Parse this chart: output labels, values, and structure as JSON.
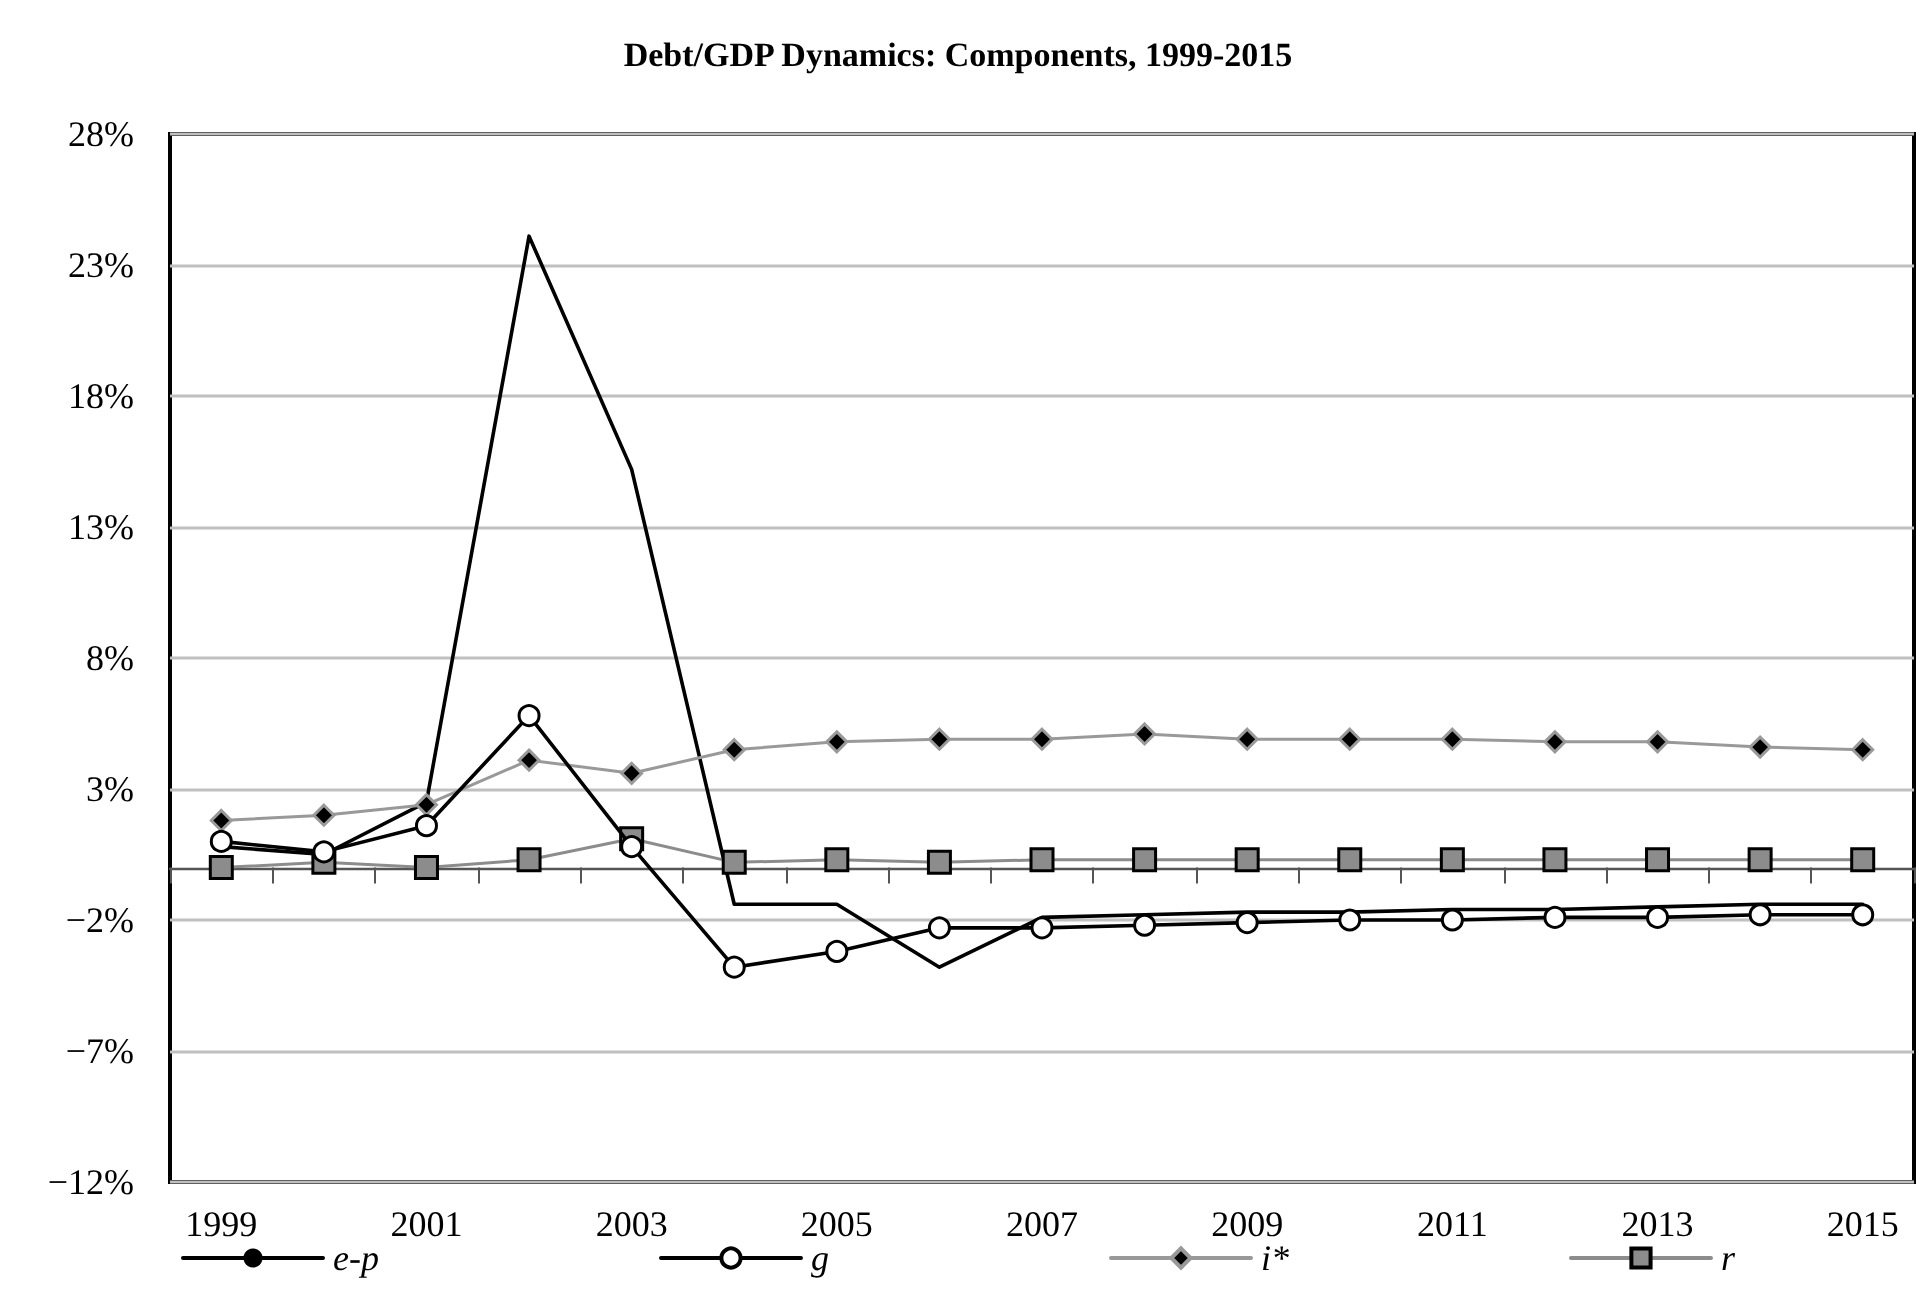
{
  "chart_data": {
    "type": "line",
    "title": "Debt/GDP Dynamics: Components, 1999-2015",
    "categories": [
      "1999",
      null,
      "2001",
      null,
      "2003",
      null,
      "2005",
      null,
      "2007",
      null,
      "2009",
      null,
      "2011",
      null,
      "2013",
      null,
      "2015"
    ],
    "series": [
      {
        "name": "e-p",
        "color": "#000000",
        "marker": "none",
        "values": [
          0.8,
          0.5,
          2.5,
          24.1,
          15.2,
          -1.4,
          -1.4,
          -3.8,
          -1.9,
          -1.8,
          -1.7,
          -1.7,
          -1.6,
          -1.6,
          -1.5,
          -1.4,
          -1.4
        ]
      },
      {
        "name": "g",
        "color": "#000000",
        "marker": "circle",
        "values": [
          1.0,
          0.6,
          1.6,
          5.8,
          0.8,
          -3.8,
          -3.2,
          -2.3,
          -2.3,
          -2.2,
          -2.1,
          -2.0,
          -2.0,
          -1.9,
          -1.9,
          -1.8,
          -1.8
        ]
      },
      {
        "name": "i*",
        "color": "#999999",
        "marker": "diamond",
        "values": [
          1.8,
          2.0,
          2.4,
          4.1,
          3.6,
          4.5,
          4.8,
          4.9,
          4.9,
          5.1,
          4.9,
          4.9,
          4.9,
          4.8,
          4.8,
          4.6,
          4.5
        ]
      },
      {
        "name": "r",
        "color": "#8c8c8c",
        "marker": "square",
        "values": [
          0.0,
          0.2,
          0.0,
          0.3,
          1.1,
          0.2,
          0.3,
          0.2,
          0.3,
          0.3,
          0.3,
          0.3,
          0.3,
          0.3,
          0.3,
          0.3,
          0.3
        ]
      }
    ],
    "ylim": [
      -12,
      28
    ],
    "yticks": [
      {
        "value": -12,
        "label": "−12%"
      },
      {
        "value": -7,
        "label": "−7%"
      },
      {
        "value": -2,
        "label": "−2%"
      },
      {
        "value": 3,
        "label": "3%"
      },
      {
        "value": 8,
        "label": "8%"
      },
      {
        "value": 13,
        "label": "13%"
      },
      {
        "value": 18,
        "label": "18%"
      },
      {
        "value": 23,
        "label": "23%"
      },
      {
        "value": 28,
        "label": "28%"
      }
    ],
    "grid": "y",
    "legend": "bottom"
  }
}
